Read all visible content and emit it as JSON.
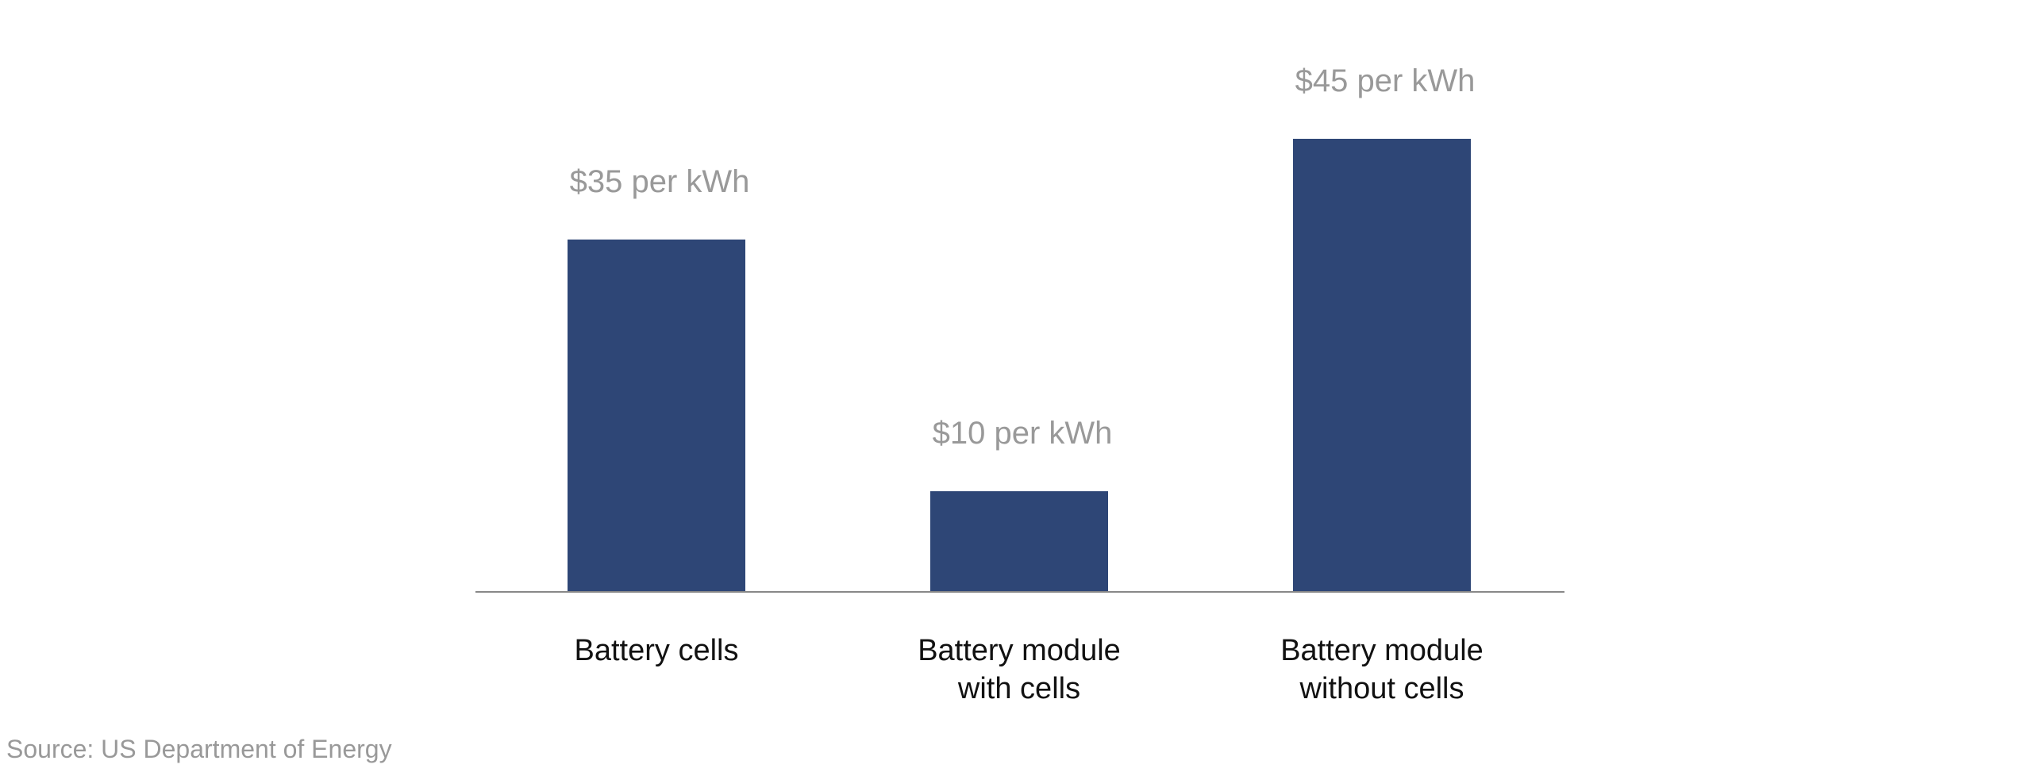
{
  "chart_data": {
    "type": "bar",
    "title": "",
    "xlabel": "",
    "ylabel": "",
    "categories": [
      [
        "Battery cells"
      ],
      [
        "Battery module",
        "with cells"
      ],
      [
        "Battery module",
        "without cells"
      ]
    ],
    "values": [
      35,
      10,
      45
    ],
    "data_labels": [
      "$35 per kWh",
      "$10 per kWh",
      "$45 per kWh"
    ],
    "unit": "$ per kWh",
    "ylim": [
      0,
      45
    ],
    "grid": false,
    "bar_color": "#2e4676",
    "axis_color": "#888888"
  },
  "source": "Source: US Department of Energy"
}
